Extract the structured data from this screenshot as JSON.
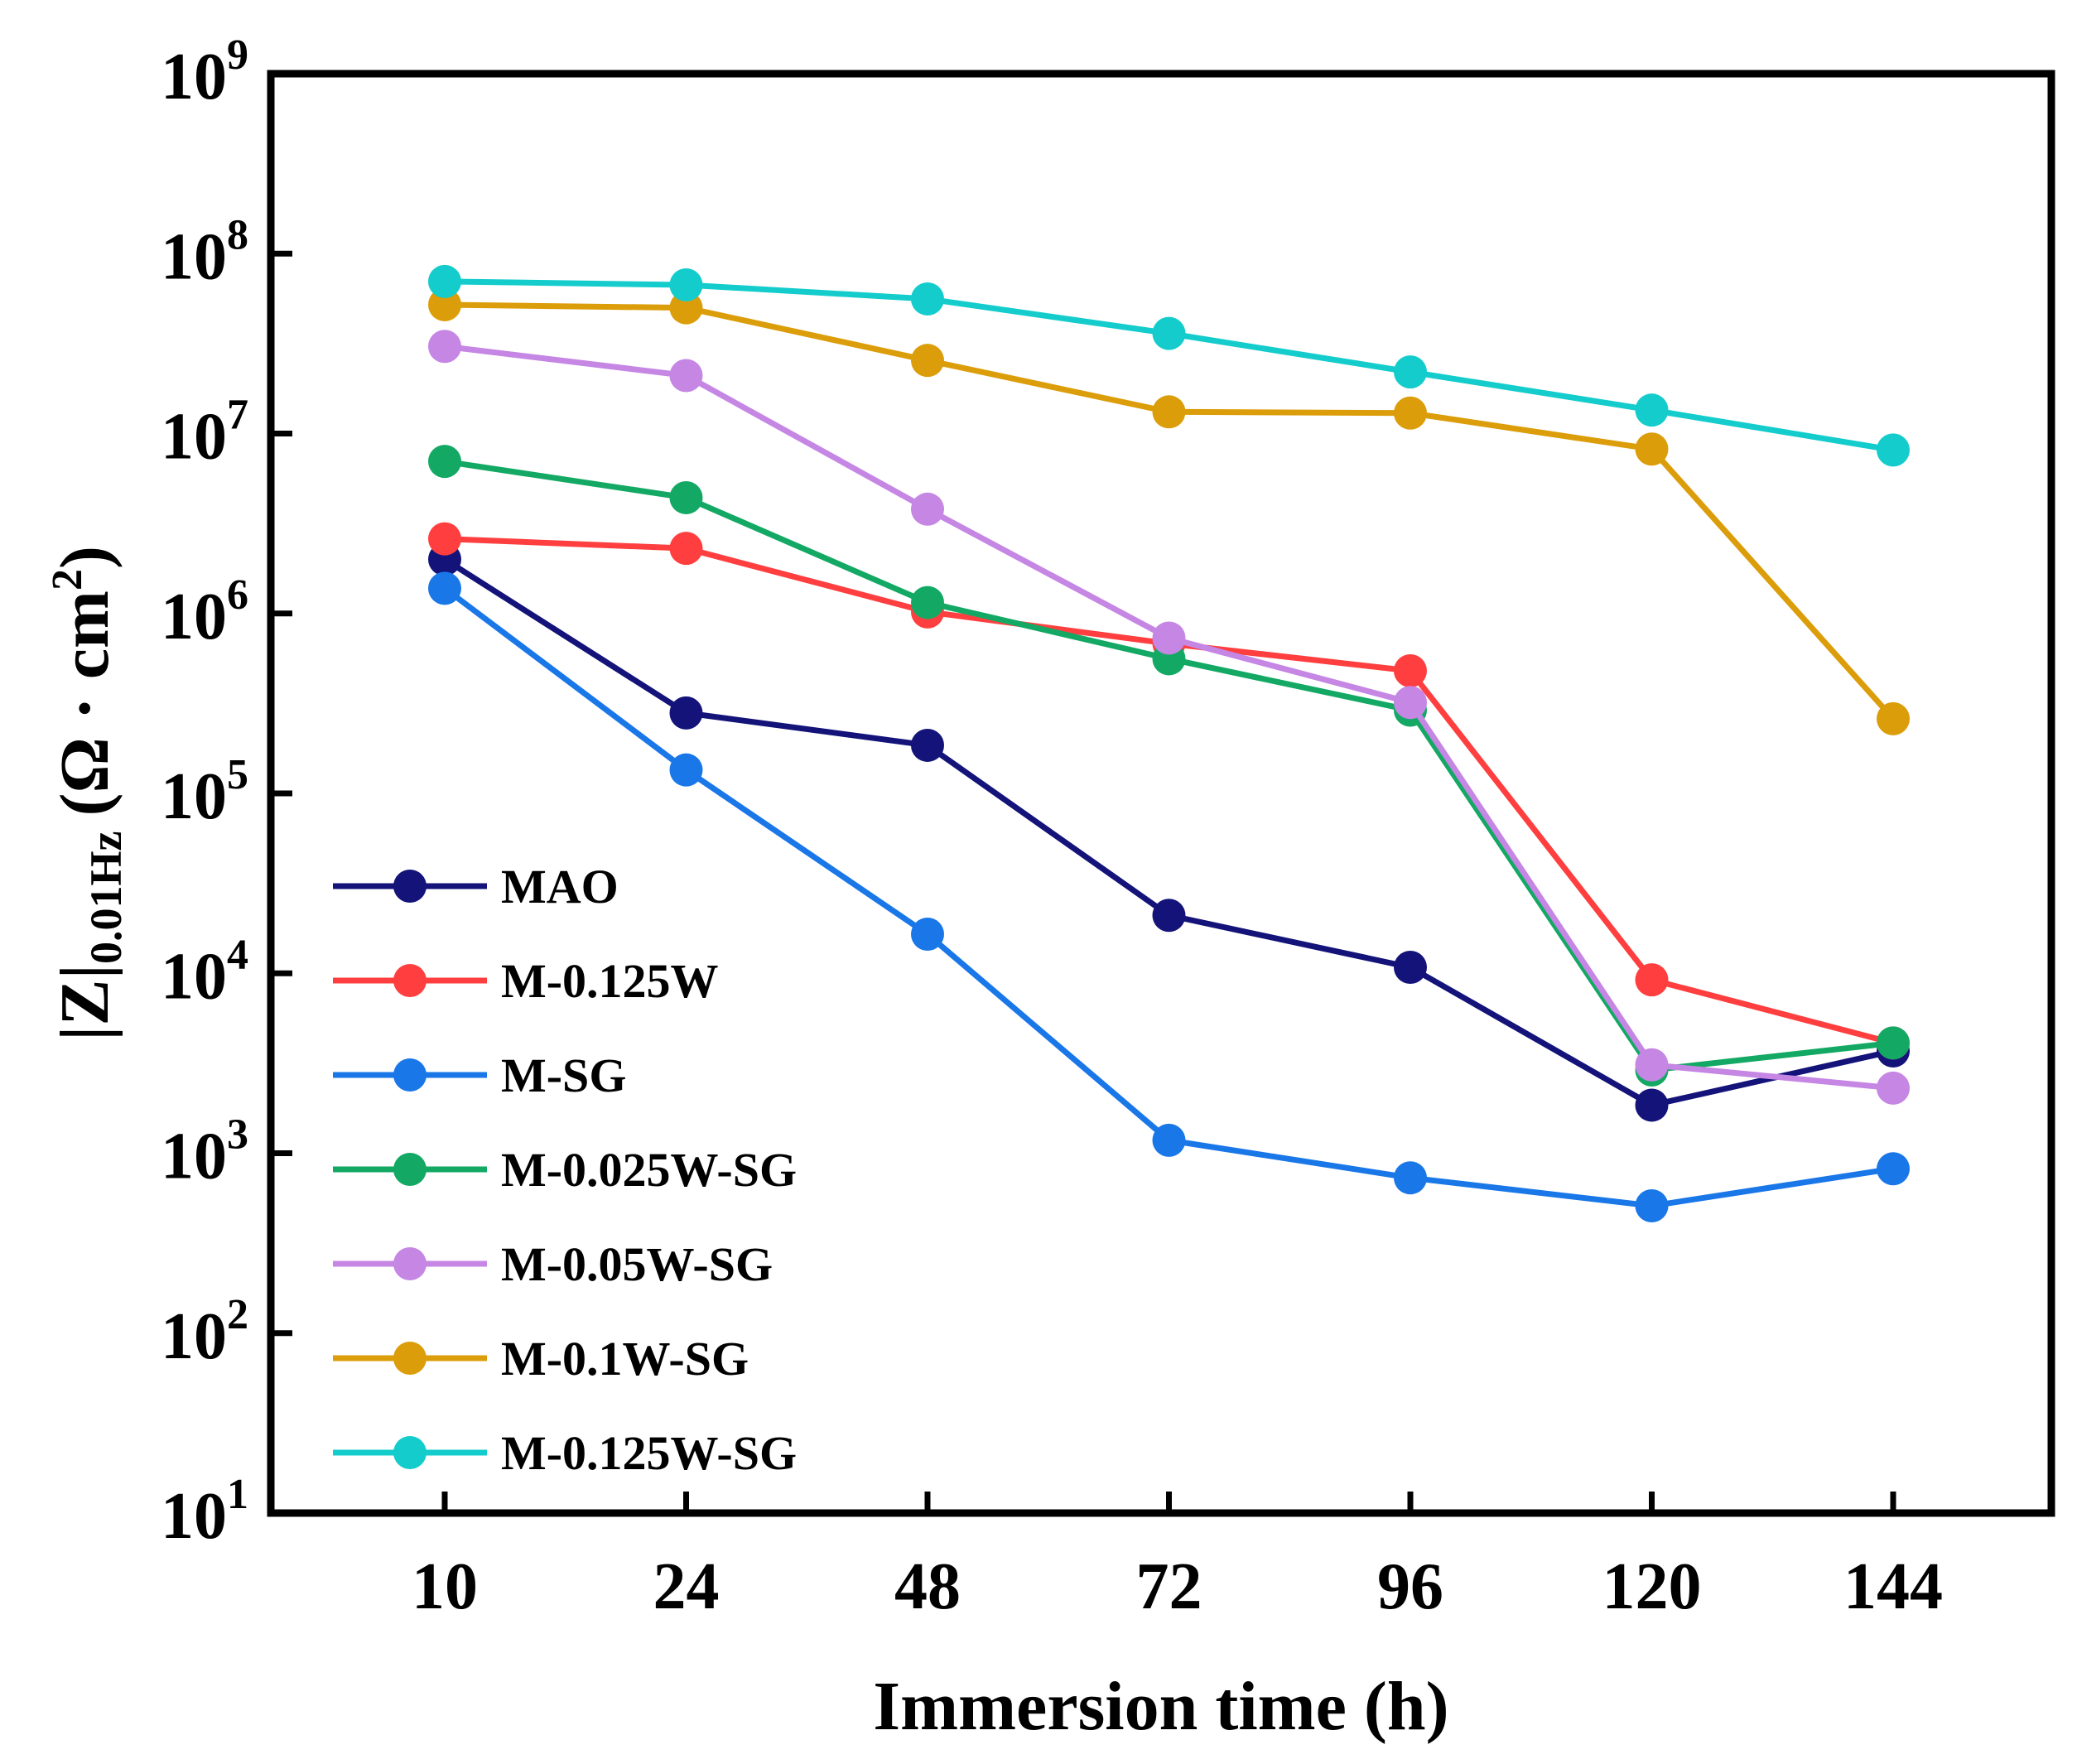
{
  "chart_data": {
    "type": "line",
    "y_scale": "log",
    "title": "",
    "xlabel": "Immersion time (h)",
    "ylabel": {
      "main": "|Z|",
      "subscript": "0.01Hz",
      "unit_prefix": "(Ω · cm",
      "unit_exp": "2",
      "unit_suffix": ")"
    },
    "categories": [
      "10",
      "24",
      "48",
      "72",
      "96",
      "120",
      "144"
    ],
    "y_ticks": [
      {
        "base": "10",
        "exp": "1",
        "value": 10
      },
      {
        "base": "10",
        "exp": "2",
        "value": 100
      },
      {
        "base": "10",
        "exp": "3",
        "value": 1000
      },
      {
        "base": "10",
        "exp": "4",
        "value": 10000
      },
      {
        "base": "10",
        "exp": "5",
        "value": 100000
      },
      {
        "base": "10",
        "exp": "6",
        "value": 1000000
      },
      {
        "base": "10",
        "exp": "7",
        "value": 10000000
      },
      {
        "base": "10",
        "exp": "8",
        "value": 100000000
      },
      {
        "base": "10",
        "exp": "9",
        "value": 1000000000
      }
    ],
    "ylim": [
      10,
      1000000000
    ],
    "legend_position": "bottom-left",
    "series": [
      {
        "name": "MAO",
        "color": "#131379",
        "values": [
          2000000,
          280000,
          185000,
          21000,
          10800,
          1850,
          3700
        ]
      },
      {
        "name": "M-0.125W",
        "color": "#ff3f3f",
        "values": [
          2600000,
          2300000,
          1020000,
          680000,
          480000,
          9200,
          4100
        ]
      },
      {
        "name": "M-SG",
        "color": "#1a77e8",
        "values": [
          1380000,
          135000,
          16500,
          1180,
          730,
          510,
          820
        ]
      },
      {
        "name": "M-0.025W-SG",
        "color": "#13a964",
        "values": [
          7000000,
          4400000,
          1150000,
          560000,
          290000,
          2900,
          4100
        ]
      },
      {
        "name": "M-0.05W-SG",
        "color": "#c586e4",
        "values": [
          30500000,
          21000000,
          3800000,
          730000,
          320000,
          3100,
          2300
        ]
      },
      {
        "name": "M-0.1W-SG",
        "color": "#dc9d0a",
        "values": [
          52000000,
          50000000,
          25500000,
          13200000,
          13000000,
          8200000,
          260000
        ]
      },
      {
        "name": "M-0.125W-SG",
        "color": "#15cccc",
        "values": [
          70000000,
          67000000,
          56000000,
          36000000,
          22000000,
          13500000,
          8100000
        ]
      }
    ]
  }
}
